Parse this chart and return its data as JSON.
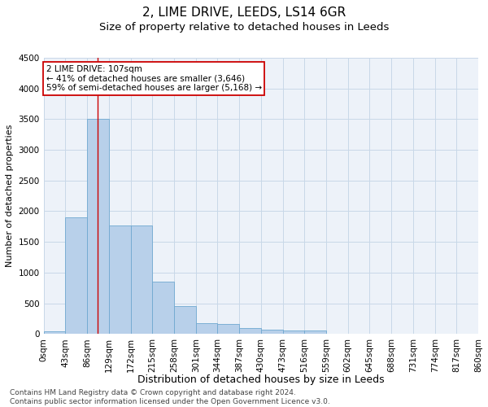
{
  "title": "2, LIME DRIVE, LEEDS, LS14 6GR",
  "subtitle": "Size of property relative to detached houses in Leeds",
  "xlabel": "Distribution of detached houses by size in Leeds",
  "ylabel": "Number of detached properties",
  "bar_color": "#b8d0ea",
  "bar_edge_color": "#6fa8d0",
  "grid_color": "#c8d8e8",
  "background_color": "#edf2f9",
  "annotation_text": "2 LIME DRIVE: 107sqm\n← 41% of detached houses are smaller (3,646)\n59% of semi-detached houses are larger (5,168) →",
  "annotation_box_color": "#ffffff",
  "annotation_box_edge_color": "#cc0000",
  "vline_x": 107,
  "vline_color": "#cc0000",
  "bin_edges": [
    0,
    43,
    86,
    129,
    172,
    215,
    258,
    301,
    344,
    387,
    430,
    473,
    516,
    559,
    602,
    645,
    688,
    731,
    774,
    817,
    860
  ],
  "bin_labels": [
    "0sqm",
    "43sqm",
    "86sqm",
    "129sqm",
    "172sqm",
    "215sqm",
    "258sqm",
    "301sqm",
    "344sqm",
    "387sqm",
    "430sqm",
    "473sqm",
    "516sqm",
    "559sqm",
    "602sqm",
    "645sqm",
    "688sqm",
    "731sqm",
    "774sqm",
    "817sqm",
    "860sqm"
  ],
  "bar_heights": [
    50,
    1900,
    3500,
    1770,
    1770,
    850,
    450,
    170,
    160,
    100,
    70,
    60,
    55,
    0,
    0,
    0,
    0,
    0,
    0,
    0
  ],
  "ylim": [
    0,
    4500
  ],
  "yticks": [
    0,
    500,
    1000,
    1500,
    2000,
    2500,
    3000,
    3500,
    4000,
    4500
  ],
  "footer_text": "Contains HM Land Registry data © Crown copyright and database right 2024.\nContains public sector information licensed under the Open Government Licence v3.0.",
  "title_fontsize": 11,
  "subtitle_fontsize": 9.5,
  "xlabel_fontsize": 9,
  "ylabel_fontsize": 8,
  "tick_fontsize": 7.5,
  "footer_fontsize": 6.5,
  "annot_fontsize": 7.5
}
